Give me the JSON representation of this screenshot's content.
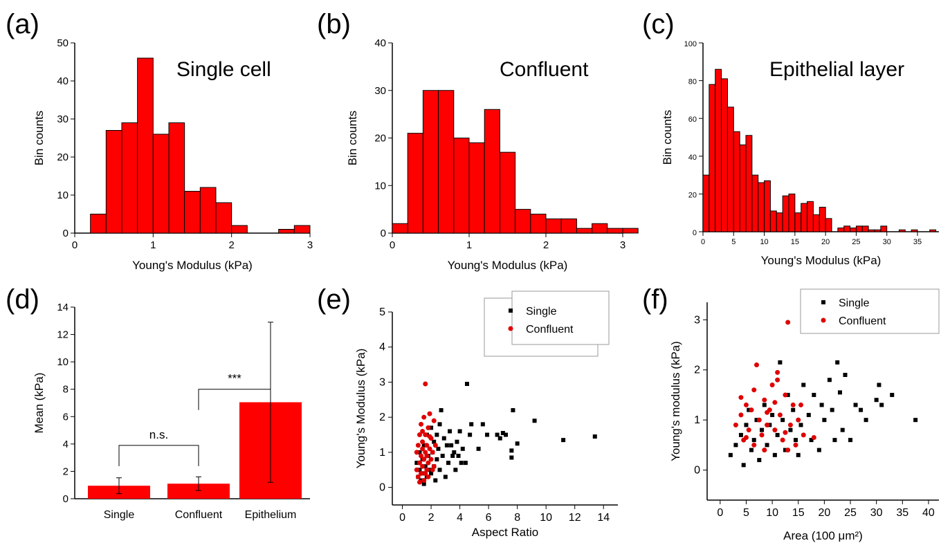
{
  "chart_data": [
    {
      "panel": "(a)",
      "type": "bar",
      "title": "Single cell",
      "xlabel": "Young's Modulus (kPa)",
      "ylabel": "Bin counts",
      "xlim": [
        0,
        3
      ],
      "ylim": [
        0,
        50
      ],
      "xticks": [
        "0",
        "1",
        "2",
        "3"
      ],
      "yticks": [
        "0",
        "10",
        "20",
        "30",
        "40",
        "50"
      ],
      "bin_width": 0.2,
      "bins": [
        [
          0.2,
          5
        ],
        [
          0.4,
          27
        ],
        [
          0.6,
          29
        ],
        [
          0.8,
          46
        ],
        [
          1.0,
          26
        ],
        [
          1.2,
          29
        ],
        [
          1.4,
          11
        ],
        [
          1.6,
          12
        ],
        [
          1.8,
          8
        ],
        [
          2.0,
          2
        ],
        [
          2.2,
          0
        ],
        [
          2.4,
          0
        ],
        [
          2.6,
          1
        ],
        [
          2.8,
          2
        ]
      ]
    },
    {
      "panel": "(b)",
      "type": "bar",
      "title": "Confluent",
      "xlabel": "Young's Modulus (kPa)",
      "ylabel": "Bin counts",
      "xlim": [
        0,
        3
      ],
      "ylim": [
        0,
        40
      ],
      "xticks": [
        "0",
        "1",
        "2",
        "3"
      ],
      "yticks": [
        "0",
        "10",
        "20",
        "30",
        "40"
      ],
      "bin_width": 0.2,
      "bins": [
        [
          0.0,
          2
        ],
        [
          0.2,
          21
        ],
        [
          0.4,
          30
        ],
        [
          0.6,
          30
        ],
        [
          0.8,
          20
        ],
        [
          1.0,
          19
        ],
        [
          1.2,
          26
        ],
        [
          1.4,
          17
        ],
        [
          1.6,
          5
        ],
        [
          1.8,
          4
        ],
        [
          2.0,
          3
        ],
        [
          2.2,
          3
        ],
        [
          2.4,
          1
        ],
        [
          2.6,
          2
        ],
        [
          2.8,
          1
        ],
        [
          3.0,
          1
        ]
      ]
    },
    {
      "panel": "(c)",
      "type": "bar",
      "title": "Epithelial layer",
      "xlabel": "Young's Modulus (kPa)",
      "ylabel": "Bin counts",
      "xlim": [
        0,
        38.5
      ],
      "ylim": [
        0,
        100
      ],
      "xticks": [
        "0",
        "5",
        "10",
        "15",
        "20",
        "25",
        "30",
        "35"
      ],
      "yticks": [
        "0",
        "20",
        "40",
        "60",
        "80",
        "100"
      ],
      "bin_width": 1,
      "bins": [
        [
          0,
          30
        ],
        [
          1,
          78
        ],
        [
          2,
          86
        ],
        [
          3,
          81
        ],
        [
          4,
          66
        ],
        [
          5,
          53
        ],
        [
          6,
          46
        ],
        [
          7,
          51
        ],
        [
          8,
          30
        ],
        [
          9,
          26
        ],
        [
          10,
          27
        ],
        [
          11,
          11
        ],
        [
          12,
          10
        ],
        [
          13,
          19
        ],
        [
          14,
          20
        ],
        [
          15,
          10
        ],
        [
          16,
          15
        ],
        [
          17,
          16
        ],
        [
          18,
          9
        ],
        [
          19,
          13
        ],
        [
          20,
          7
        ],
        [
          21,
          0
        ],
        [
          22,
          2
        ],
        [
          23,
          3
        ],
        [
          24,
          2
        ],
        [
          25,
          3
        ],
        [
          26,
          3
        ],
        [
          27,
          1
        ],
        [
          28,
          1
        ],
        [
          29,
          3
        ],
        [
          30,
          0
        ],
        [
          31,
          0
        ],
        [
          32,
          1
        ],
        [
          33,
          0
        ],
        [
          34,
          1
        ],
        [
          35,
          0
        ],
        [
          36,
          0
        ],
        [
          37,
          1
        ]
      ]
    },
    {
      "panel": "(d)",
      "type": "bar",
      "ylabel": "Mean (kPa)",
      "ylim": [
        0,
        14
      ],
      "yticks": [
        "0",
        "2",
        "4",
        "6",
        "8",
        "10",
        "12",
        "14"
      ],
      "categories": [
        "Single",
        "Confluent",
        "Epithelium"
      ],
      "values": [
        0.95,
        1.1,
        7.05
      ],
      "errors": [
        0.58,
        0.5,
        5.85
      ],
      "annotations": [
        {
          "text": "n.s.",
          "between": [
            0,
            1
          ],
          "y": 3.9
        },
        {
          "text": "***",
          "between": [
            1,
            2
          ],
          "y": 8.0
        }
      ]
    },
    {
      "panel": "(e)",
      "type": "scatter",
      "xlabel": "Aspect Ratio",
      "ylabel": "Young's Modulus (kPa)",
      "xlim": [
        -0.7,
        15
      ],
      "ylim": [
        -0.5,
        5
      ],
      "xticks": [
        "0",
        "2",
        "4",
        "6",
        "8",
        "10",
        "12",
        "14"
      ],
      "yticks": [
        "0",
        "1",
        "2",
        "3",
        "4",
        "5"
      ],
      "legend": "top-right",
      "series": [
        {
          "name": "Single",
          "color": "#000000",
          "marker": "square",
          "points": [
            [
              1.0,
              0.7
            ],
            [
              1.1,
              0.3
            ],
            [
              1.2,
              0.5
            ],
            [
              1.2,
              1.0
            ],
            [
              1.3,
              0.2
            ],
            [
              1.4,
              0.4
            ],
            [
              1.4,
              0.8
            ],
            [
              1.5,
              1.2
            ],
            [
              1.5,
              0.1
            ],
            [
              1.6,
              0.6
            ],
            [
              1.7,
              0.3
            ],
            [
              1.7,
              1.5
            ],
            [
              1.8,
              0.9
            ],
            [
              1.9,
              0.5
            ],
            [
              2.0,
              1.7
            ],
            [
              2.0,
              0.4
            ],
            [
              2.1,
              1.0
            ],
            [
              2.2,
              0.6
            ],
            [
              2.2,
              1.3
            ],
            [
              2.3,
              0.2
            ],
            [
              2.4,
              0.8
            ],
            [
              2.4,
              1.5
            ],
            [
              2.5,
              1.1
            ],
            [
              2.6,
              0.5
            ],
            [
              2.6,
              1.8
            ],
            [
              2.7,
              2.2
            ],
            [
              2.8,
              0.9
            ],
            [
              2.9,
              1.4
            ],
            [
              3.0,
              0.3
            ],
            [
              3.1,
              1.2
            ],
            [
              3.2,
              0.7
            ],
            [
              3.3,
              1.6
            ],
            [
              3.4,
              1.2
            ],
            [
              3.5,
              0.9
            ],
            [
              3.6,
              1.0
            ],
            [
              3.7,
              0.5
            ],
            [
              3.8,
              1.3
            ],
            [
              3.9,
              0.9
            ],
            [
              4.0,
              1.6
            ],
            [
              4.1,
              0.7
            ],
            [
              4.2,
              1.1
            ],
            [
              4.4,
              0.7
            ],
            [
              4.5,
              2.95
            ],
            [
              4.7,
              1.5
            ],
            [
              4.8,
              1.8
            ],
            [
              5.3,
              1.1
            ],
            [
              5.6,
              1.8
            ],
            [
              5.9,
              1.5
            ],
            [
              6.6,
              1.5
            ],
            [
              6.8,
              1.4
            ],
            [
              7.0,
              1.55
            ],
            [
              7.2,
              1.5
            ],
            [
              7.6,
              0.85
            ],
            [
              7.6,
              1.05
            ],
            [
              7.7,
              2.2
            ],
            [
              8.0,
              1.25
            ],
            [
              9.2,
              1.9
            ],
            [
              11.2,
              1.35
            ],
            [
              13.4,
              1.45
            ]
          ]
        },
        {
          "name": "Confluent",
          "color": "#e00000",
          "marker": "circle",
          "points": [
            [
              1.0,
              0.5
            ],
            [
              1.0,
              1.0
            ],
            [
              1.1,
              1.2
            ],
            [
              1.1,
              0.3
            ],
            [
              1.2,
              0.7
            ],
            [
              1.2,
              1.5
            ],
            [
              1.3,
              0.9
            ],
            [
              1.3,
              0.4
            ],
            [
              1.3,
              1.8
            ],
            [
              1.4,
              1.1
            ],
            [
              1.4,
              0.6
            ],
            [
              1.4,
              1.3
            ],
            [
              1.5,
              2.0
            ],
            [
              1.5,
              0.8
            ],
            [
              1.5,
              0.2
            ],
            [
              1.6,
              1.0
            ],
            [
              1.6,
              2.95
            ],
            [
              1.6,
              1.5
            ],
            [
              1.7,
              0.5
            ],
            [
              1.7,
              1.2
            ],
            [
              1.7,
              0.9
            ],
            [
              1.8,
              1.7
            ],
            [
              1.8,
              0.7
            ],
            [
              1.8,
              0.3
            ],
            [
              1.9,
              1.1
            ],
            [
              1.9,
              2.1
            ],
            [
              2.0,
              0.8
            ],
            [
              2.0,
              1.4
            ],
            [
              2.1,
              0.5
            ],
            [
              2.1,
              1.0
            ],
            [
              2.2,
              1.9
            ],
            [
              2.2,
              0.6
            ],
            [
              2.3,
              1.2
            ],
            [
              1.2,
              0.15
            ],
            [
              1.4,
              1.6
            ],
            [
              1.6,
              0.4
            ],
            [
              1.9,
              1.45
            ]
          ]
        }
      ]
    },
    {
      "panel": "(f)",
      "type": "scatter",
      "xlabel": "Area (100 μm²)",
      "ylabel": "Young's modulus (kPa)",
      "xlim": [
        -2.5,
        42
      ],
      "ylim": [
        -0.6,
        3.35
      ],
      "xticks": [
        "0",
        "5",
        "10",
        "15",
        "20",
        "25",
        "30",
        "35",
        "40"
      ],
      "yticks": [
        "0",
        "1",
        "2",
        "3"
      ],
      "legend": "top-right",
      "series": [
        {
          "name": "Single",
          "color": "#000000",
          "marker": "square",
          "points": [
            [
              2.0,
              0.3
            ],
            [
              3.0,
              0.5
            ],
            [
              4.0,
              0.7
            ],
            [
              4.5,
              0.1
            ],
            [
              5.0,
              0.9
            ],
            [
              5.5,
              1.2
            ],
            [
              6.0,
              0.4
            ],
            [
              6.5,
              0.6
            ],
            [
              7.0,
              1.0
            ],
            [
              7.5,
              0.2
            ],
            [
              8.0,
              0.8
            ],
            [
              8.5,
              1.3
            ],
            [
              9.0,
              0.5
            ],
            [
              9.5,
              0.9
            ],
            [
              10.0,
              1.1
            ],
            [
              10.5,
              0.3
            ],
            [
              11.0,
              0.7
            ],
            [
              11.5,
              2.15
            ],
            [
              12.0,
              1.0
            ],
            [
              12.5,
              0.4
            ],
            [
              13.0,
              1.5
            ],
            [
              13.5,
              0.8
            ],
            [
              14.0,
              1.2
            ],
            [
              14.5,
              0.6
            ],
            [
              15.0,
              0.3
            ],
            [
              15.5,
              0.9
            ],
            [
              16.0,
              1.7
            ],
            [
              17.0,
              1.1
            ],
            [
              17.5,
              0.6
            ],
            [
              18.0,
              1.5
            ],
            [
              19.0,
              0.4
            ],
            [
              19.5,
              1.3
            ],
            [
              20.0,
              1.0
            ],
            [
              21.0,
              1.8
            ],
            [
              21.5,
              1.2
            ],
            [
              22.0,
              0.6
            ],
            [
              22.5,
              2.15
            ],
            [
              23.0,
              1.55
            ],
            [
              23.5,
              0.8
            ],
            [
              24.0,
              1.9
            ],
            [
              24.5,
              2.95
            ],
            [
              25.0,
              0.6
            ],
            [
              26.0,
              1.3
            ],
            [
              27.0,
              1.2
            ],
            [
              28.0,
              1.0
            ],
            [
              30.0,
              1.4
            ],
            [
              30.5,
              1.7
            ],
            [
              31.0,
              1.3
            ],
            [
              33.0,
              1.5
            ],
            [
              37.5,
              1.0
            ]
          ]
        },
        {
          "name": "Confluent",
          "color": "#e00000",
          "marker": "circle",
          "points": [
            [
              3.0,
              0.9
            ],
            [
              4.0,
              1.1
            ],
            [
              4.5,
              0.6
            ],
            [
              5.0,
              1.3
            ],
            [
              5.5,
              0.8
            ],
            [
              6.0,
              1.2
            ],
            [
              6.5,
              0.5
            ],
            [
              7.0,
              2.1
            ],
            [
              7.5,
              1.0
            ],
            [
              8.0,
              0.7
            ],
            [
              8.5,
              1.4
            ],
            [
              9.0,
              0.9
            ],
            [
              9.5,
              1.2
            ],
            [
              10.0,
              1.7
            ],
            [
              10.5,
              0.8
            ],
            [
              11.0,
              1.95
            ],
            [
              11.5,
              1.1
            ],
            [
              12.0,
              0.6
            ],
            [
              12.5,
              1.5
            ],
            [
              13.0,
              2.95
            ],
            [
              13.5,
              0.9
            ],
            [
              14.0,
              1.3
            ],
            [
              14.5,
              0.5
            ],
            [
              15.0,
              1.0
            ],
            [
              15.5,
              1.3
            ],
            [
              16.0,
              0.7
            ],
            [
              6.5,
              1.6
            ],
            [
              8.5,
              0.4
            ],
            [
              11.0,
              1.8
            ],
            [
              12.5,
              0.75
            ],
            [
              4.0,
              1.45
            ],
            [
              5.0,
              0.65
            ],
            [
              9.0,
              1.15
            ],
            [
              10.5,
              1.35
            ],
            [
              13.0,
              0.4
            ],
            [
              18.0,
              0.65
            ]
          ]
        }
      ]
    }
  ]
}
